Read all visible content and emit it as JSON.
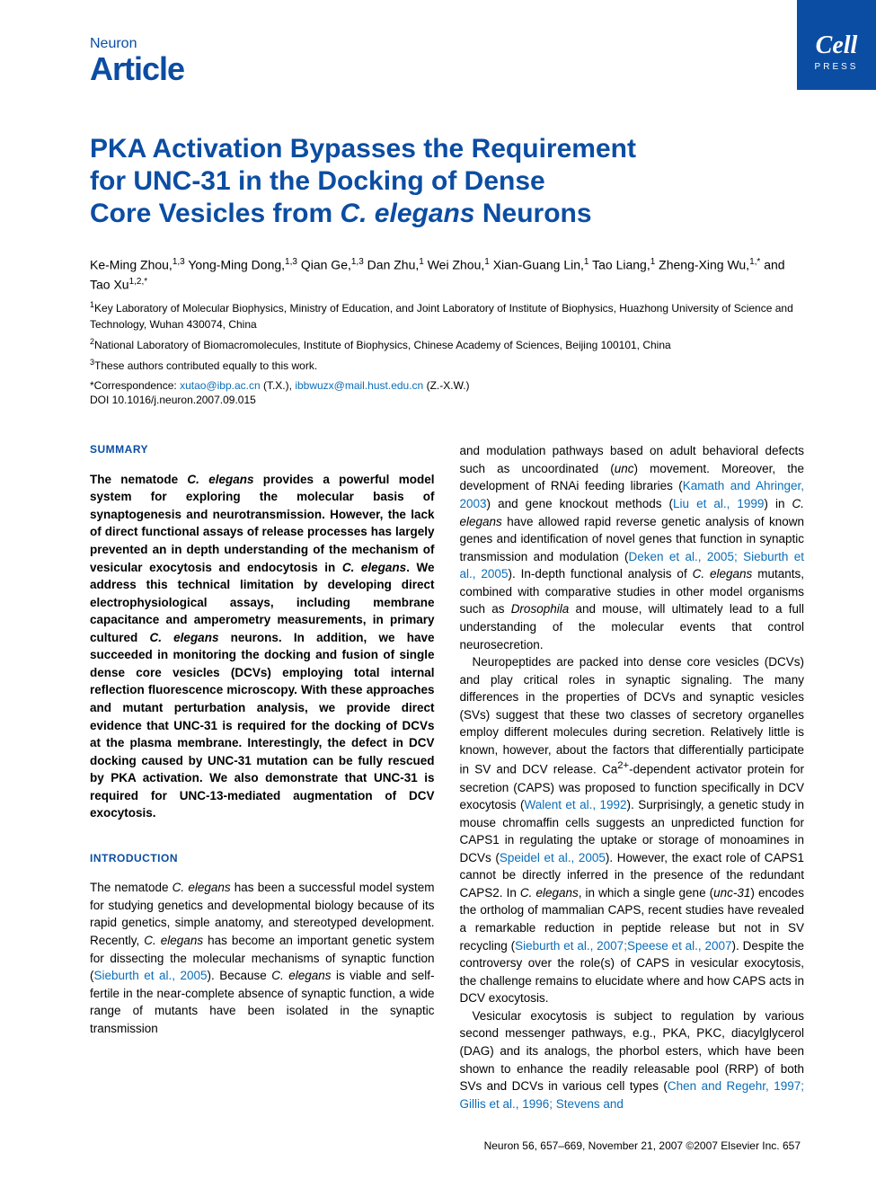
{
  "badge": {
    "brand": "Cell",
    "sub": "PRESS"
  },
  "header": {
    "journal": "Neuron",
    "type": "Article"
  },
  "title_line1": "PKA Activation Bypasses the Requirement",
  "title_line2": "for UNC-31 in the Docking of Dense",
  "title_line3_a": "Core Vesicles from ",
  "title_line3_italic": "C. elegans",
  "title_line3_b": " Neurons",
  "authors_html": "Ke-Ming Zhou,<sup>1,3</sup> Yong-Ming Dong,<sup>1,3</sup> Qian Ge,<sup>1,3</sup> Dan Zhu,<sup>1</sup> Wei Zhou,<sup>1</sup> Xian-Guang Lin,<sup>1</sup> Tao Liang,<sup>1</sup> Zheng-Xing Wu,<sup>1,*</sup> and Tao Xu<sup>1,2,*</sup>",
  "affiliations": {
    "a1": "Key Laboratory of Molecular Biophysics, Ministry of Education, and Joint Laboratory of Institute of Biophysics, Huazhong University of Science and Technology, Wuhan 430074, China",
    "a2": "National Laboratory of Biomacromolecules, Institute of Biophysics, Chinese Academy of Sciences, Beijing 100101, China",
    "a3": "These authors contributed equally to this work."
  },
  "correspondence_label": "*Correspondence: ",
  "email1": "xutao@ibp.ac.cn",
  "email1_suffix": " (T.X.), ",
  "email2": "ibbwuzx@mail.hust.edu.cn",
  "email2_suffix": " (Z.-X.W.)",
  "doi": "DOI 10.1016/j.neuron.2007.09.015",
  "summary_heading": "SUMMARY",
  "summary_p": "The nematode C. elegans provides a powerful model system for exploring the molecular basis of synaptogenesis and neurotransmission. However, the lack of direct functional assays of release processes has largely prevented an in depth understanding of the mechanism of vesicular exocytosis and endocytosis in C. elegans. We address this technical limitation by developing direct electrophysiological assays, including membrane capacitance and amperometry measurements, in primary cultured C. elegans neurons. In addition, we have succeeded in monitoring the docking and fusion of single dense core vesicles (DCVs) employing total internal reflection fluorescence microscopy. With these approaches and mutant perturbation analysis, we provide direct evidence that UNC-31 is required for the docking of DCVs at the plasma membrane. Interestingly, the defect in DCV docking caused by UNC-31 mutation can be fully rescued by PKA activation. We also demonstrate that UNC-31 is required for UNC-13-mediated augmentation of DCV exocytosis.",
  "intro_heading": "INTRODUCTION",
  "intro_p1_a": "The nematode ",
  "intro_p1_b": " has been a successful model system for studying genetics and developmental biology because of its rapid genetics, simple anatomy, and stereotyped development. Recently, ",
  "intro_p1_c": " has become an important genetic system for dissecting the molecular mechanisms of synaptic function (",
  "intro_ref1": "Sieburth et al., 2005",
  "intro_p1_d": "). Because ",
  "intro_p1_e": " is viable and self-fertile in the near-complete absence of synaptic function, a wide range of mutants have been isolated in the synaptic transmission",
  "col2_p1_a": "and modulation pathways based on adult behavioral defects such as uncoordinated (",
  "col2_p1_b": ") movement. Moreover, the development of RNAi feeding libraries (",
  "col2_ref1": "Kamath and Ahringer, 2003",
  "col2_p1_c": ") and gene knockout methods (",
  "col2_ref2": "Liu et al., 1999",
  "col2_p1_d": ") in ",
  "col2_p1_e": " have allowed rapid reverse genetic analysis of known genes and identification of novel genes that function in synaptic transmission and modulation (",
  "col2_ref3": "Deken et al., 2005; Sieburth et al., 2005",
  "col2_p1_f": "). In-depth functional analysis of ",
  "col2_p1_g": " mutants, combined with comparative studies in other model organisms such as ",
  "col2_p1_h": " and mouse, will ultimately lead to a full understanding of the molecular events that control neurosecretion.",
  "col2_p2_a": "Neuropeptides are packed into dense core vesicles (DCVs) and play critical roles in synaptic signaling. The many differences in the properties of DCVs and synaptic vesicles (SVs) suggest that these two classes of secretory organelles employ different molecules during secretion. Relatively little is known, however, about the factors that differentially participate in SV and DCV release. Ca",
  "col2_p2_b": "-dependent activator protein for secretion (CAPS) was proposed to function specifically in DCV exocytosis (",
  "col2_ref4": "Walent et al., 1992",
  "col2_p2_c": "). Surprisingly, a genetic study in mouse chromaffin cells suggests an unpredicted function for CAPS1 in regulating the uptake or storage of monoamines in DCVs (",
  "col2_ref5": "Speidel et al., 2005",
  "col2_p2_d": "). However, the exact role of CAPS1 cannot be directly inferred in the presence of the redundant CAPS2. In ",
  "col2_p2_e": " in which a single gene (",
  "col2_p2_f": ") encodes the ortholog of mammalian CAPS, recent studies have revealed a remarkable reduction in peptide release but not in SV recycling (",
  "col2_ref6": "Sieburth et al., 2007;Speese et al., 2007",
  "col2_p2_g": "). Despite the controversy over the role(s) of CAPS in vesicular exocytosis, the challenge remains to elucidate where and how CAPS acts in DCV exocytosis.",
  "col2_p3_a": "Vesicular exocytosis is subject to regulation by various second messenger pathways, e.g., PKA, PKC, diacylglycerol (DAG) and its analogs, the phorbol esters, which have been shown to enhance the readily releasable pool (RRP) of both SVs and DCVs in various cell types (",
  "col2_ref7": "Chen and Regehr, 1997; Gillis et al., 1996; Stevens and",
  "species": {
    "celegans": "C. elegans",
    "drosophila": "Drosophila",
    "unc": "unc",
    "unc31": "unc-31"
  },
  "footer": "Neuron 56, 657–669, November 21, 2007 ©2007 Elsevier Inc.   657"
}
